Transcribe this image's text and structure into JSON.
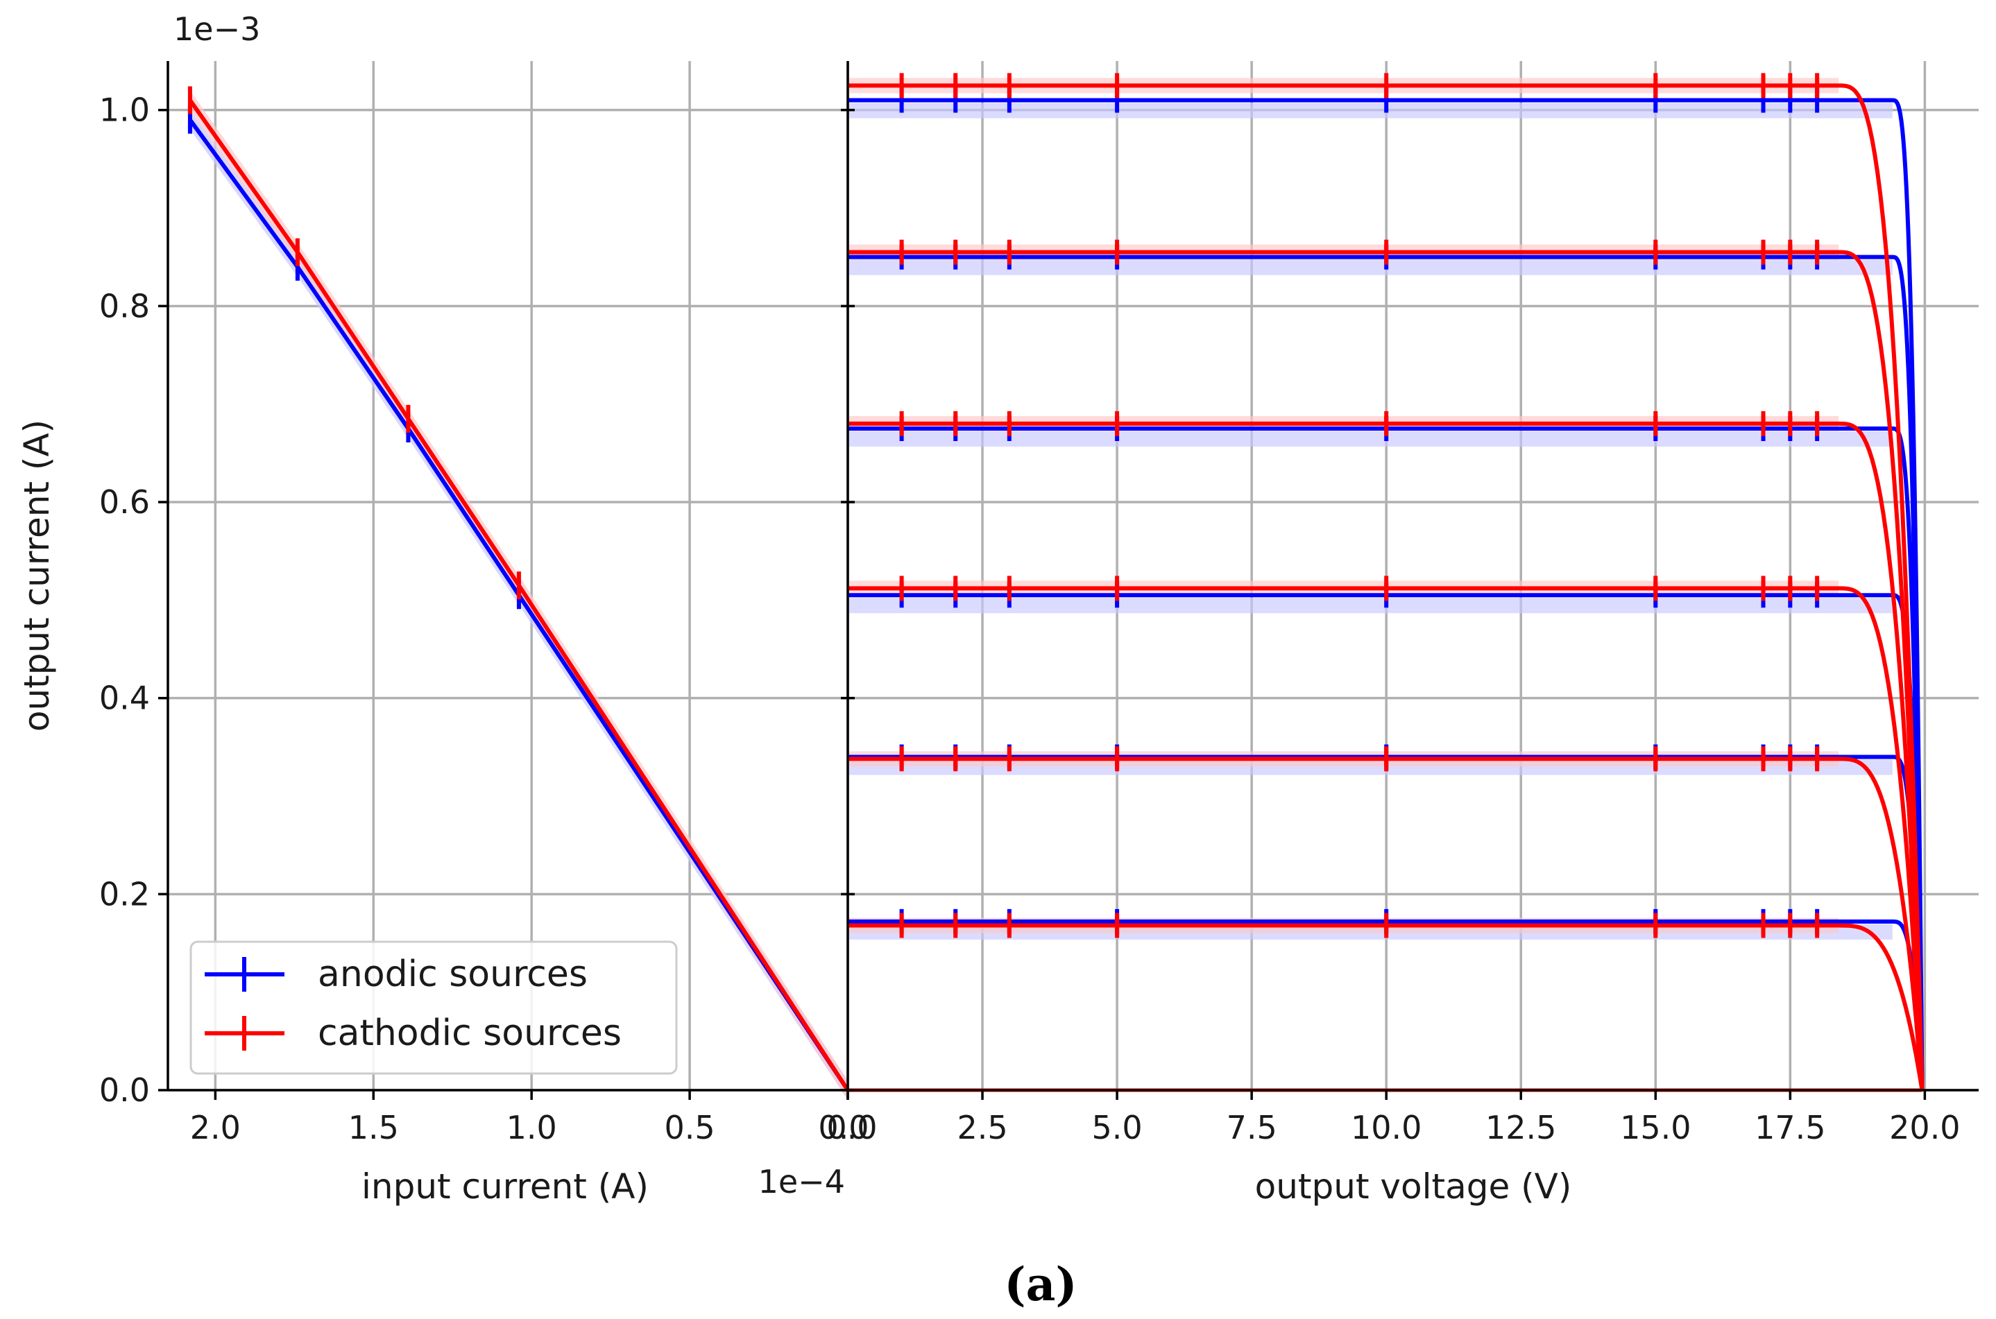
{
  "caption": "(a)",
  "colors": {
    "anodic": "#0000ff",
    "cathodic": "#ff0000",
    "anodic_band": "#c8c8ff",
    "cathodic_band": "#ffc8c8",
    "grid": "#b0b0b0"
  },
  "legend": {
    "entries": [
      {
        "label": "anodic sources",
        "color": "#0000ff"
      },
      {
        "label": "cathodic sources",
        "color": "#ff0000"
      }
    ],
    "placement": "lower-left"
  },
  "shared_axis": {
    "ylabel": "output current (A)",
    "y_exponent": "1e−3",
    "y_ticks": [
      0.0,
      0.2,
      0.4,
      0.6,
      0.8,
      1.0
    ],
    "y_tick_labels": [
      "0.0",
      "0.2",
      "0.4",
      "0.6",
      "0.8",
      "1.0"
    ],
    "ylim": [
      0.0,
      1.05
    ]
  },
  "chart_data": [
    {
      "type": "line",
      "panel": "left",
      "xlabel": "input current (A)",
      "x_exponent": "1e−4",
      "xlim": [
        2.15,
        0.0
      ],
      "x_ticks": [
        2.0,
        1.5,
        1.0,
        0.5,
        0.0
      ],
      "x_tick_labels": [
        "2.0",
        "1.5",
        "1.0",
        "0.5",
        "0.0"
      ],
      "grid": true,
      "series": [
        {
          "name": "anodic sources",
          "x": [
            2.08,
            1.74,
            1.39,
            1.04,
            0.0
          ],
          "y": [
            0.99,
            0.84,
            0.675,
            0.505,
            0.0
          ]
        },
        {
          "name": "cathodic sources",
          "x": [
            2.08,
            1.74,
            1.39,
            1.04,
            0.0
          ],
          "y": [
            1.01,
            0.855,
            0.685,
            0.515,
            0.0
          ]
        }
      ]
    },
    {
      "type": "line",
      "panel": "right",
      "xlabel": "output voltage (V)",
      "xlim": [
        0.0,
        21.0
      ],
      "x_ticks": [
        0.0,
        2.5,
        5.0,
        7.5,
        10.0,
        12.5,
        15.0,
        17.5,
        20.0
      ],
      "x_tick_labels": [
        "0.0",
        "2.5",
        "5.0",
        "7.5",
        "10.0",
        "12.5",
        "15.0",
        "17.5",
        "20.0"
      ],
      "grid": true,
      "errorbar_x": [
        1.0,
        2.0,
        3.0,
        5.0,
        10.0,
        15.0,
        17.0,
        17.5,
        18.0
      ],
      "series": [
        {
          "name": "anodic sources",
          "plateaus": [
            1.01,
            0.85,
            0.675,
            0.505,
            0.34,
            0.172
          ],
          "knee_v": 19.4,
          "end_v": 19.95
        },
        {
          "name": "cathodic sources",
          "plateaus": [
            1.025,
            0.855,
            0.68,
            0.512,
            0.338,
            0.168
          ],
          "knee_v": 18.4,
          "end_v": 19.95
        }
      ]
    }
  ]
}
